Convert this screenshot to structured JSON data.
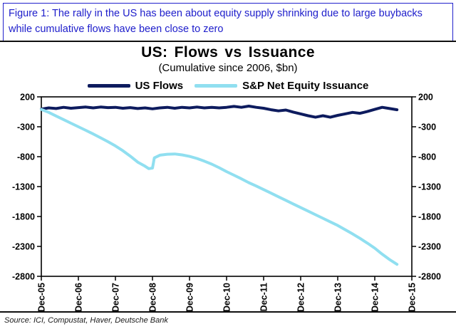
{
  "figure_caption": "Figure 1: The rally in the US has been about equity supply shrinking due to large buybacks while cumulative flows have been close to zero",
  "source_note": "Source: ICI, Compustat, Haver, Deutsche Bank",
  "colors": {
    "caption_blue": "#2121cc",
    "us_flows_navy": "#0d1b5e",
    "issuance_cyan": "#90dff0",
    "axis_black": "#000000"
  },
  "chart_data": {
    "type": "line",
    "title": "US: Flows vs Issuance",
    "subtitle": "(Cumulative since 2006, $bn)",
    "grid": false,
    "legend_position": "top",
    "ylim": [
      -2800,
      200
    ],
    "yticks": [
      200,
      -300,
      -800,
      -1300,
      -1800,
      -2300,
      -2800
    ],
    "xlim": [
      0,
      10
    ],
    "xtick_positions": [
      0,
      1,
      2,
      3,
      4,
      5,
      6,
      7,
      8,
      9,
      10
    ],
    "xtick_labels": [
      "Dec-05",
      "Dec-06",
      "Dec-07",
      "Dec-08",
      "Dec-09",
      "Dec-10",
      "Dec-11",
      "Dec-12",
      "Dec-13",
      "Dec-14",
      "Dec-15"
    ],
    "series": [
      {
        "name": "US Flows",
        "color": "#0d1b5e",
        "x": [
          0,
          0.2,
          0.4,
          0.6,
          0.8,
          1,
          1.2,
          1.4,
          1.6,
          1.8,
          2,
          2.2,
          2.4,
          2.6,
          2.8,
          3,
          3.2,
          3.4,
          3.6,
          3.8,
          4,
          4.2,
          4.4,
          4.6,
          4.8,
          5,
          5.2,
          5.4,
          5.6,
          5.8,
          6,
          6.2,
          6.4,
          6.6,
          6.8,
          7,
          7.2,
          7.4,
          7.6,
          7.8,
          8,
          8.2,
          8.4,
          8.6,
          8.8,
          9,
          9.2,
          9.4,
          9.6
        ],
        "y": [
          -5,
          15,
          5,
          25,
          10,
          20,
          30,
          15,
          30,
          20,
          25,
          10,
          20,
          5,
          15,
          0,
          15,
          25,
          10,
          25,
          15,
          30,
          15,
          25,
          15,
          25,
          40,
          25,
          45,
          25,
          10,
          -15,
          -35,
          -20,
          -55,
          -85,
          -115,
          -140,
          -115,
          -140,
          -110,
          -85,
          -60,
          -75,
          -45,
          -10,
          25,
          5,
          -15
        ]
      },
      {
        "name": "S&P Net Equity Issuance",
        "color": "#90dff0",
        "x": [
          0,
          0.2,
          0.4,
          0.6,
          0.8,
          1,
          1.2,
          1.4,
          1.6,
          1.8,
          2,
          2.2,
          2.4,
          2.6,
          2.8,
          2.9,
          3,
          3.05,
          3.2,
          3.4,
          3.6,
          3.8,
          4,
          4.2,
          4.4,
          4.6,
          4.8,
          5,
          5.2,
          5.4,
          5.6,
          5.8,
          6,
          6.2,
          6.4,
          6.6,
          6.8,
          7,
          7.2,
          7.4,
          7.6,
          7.8,
          8,
          8.2,
          8.4,
          8.6,
          8.8,
          9,
          9.2,
          9.4,
          9.6
        ],
        "y": [
          -10,
          -60,
          -120,
          -180,
          -240,
          -300,
          -360,
          -420,
          -485,
          -550,
          -620,
          -700,
          -790,
          -890,
          -960,
          -1000,
          -990,
          -820,
          -775,
          -760,
          -755,
          -770,
          -795,
          -830,
          -875,
          -925,
          -985,
          -1050,
          -1110,
          -1170,
          -1235,
          -1290,
          -1350,
          -1410,
          -1470,
          -1530,
          -1590,
          -1650,
          -1710,
          -1770,
          -1830,
          -1890,
          -1950,
          -2020,
          -2090,
          -2165,
          -2245,
          -2330,
          -2430,
          -2520,
          -2600
        ]
      }
    ]
  }
}
